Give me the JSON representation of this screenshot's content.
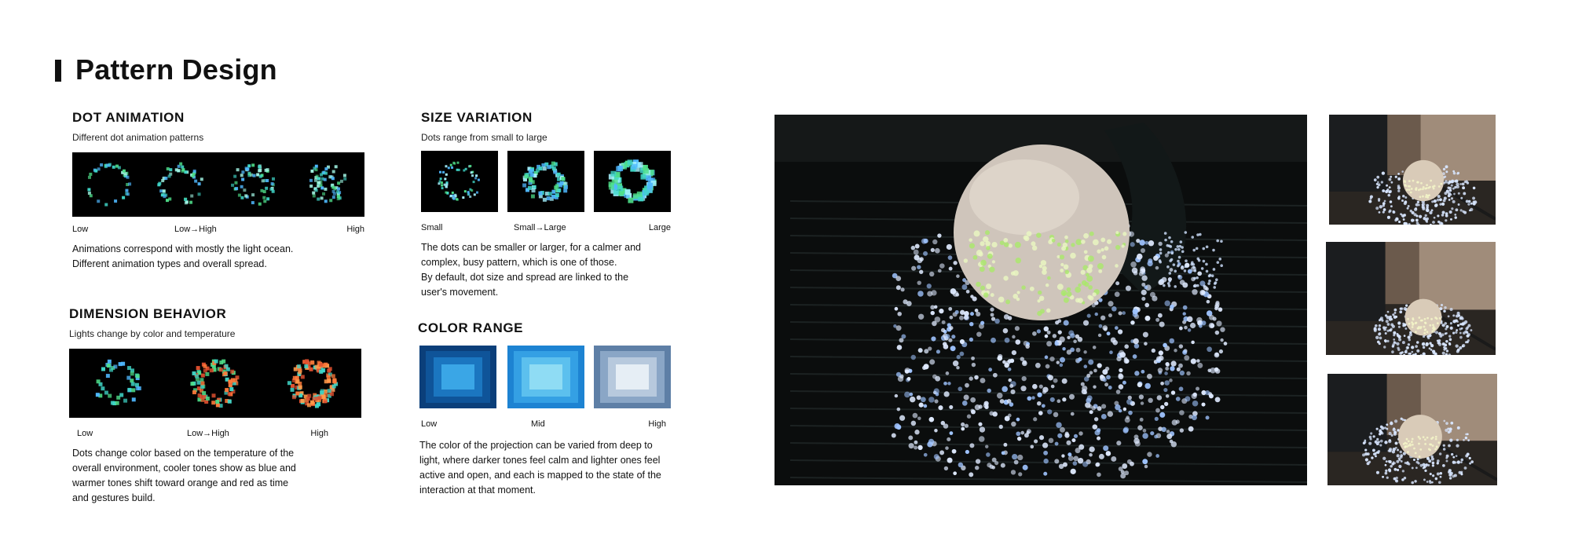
{
  "page": {
    "title": "Pattern Design"
  },
  "sections": {
    "dot_animation": {
      "heading": "DOT ANIMATION",
      "subheading": "Different dot animation patterns",
      "scale": {
        "left": "Low",
        "middle": "Low→High",
        "right": "High"
      },
      "description": [
        "Animations correspond with mostly the light ocean.",
        "Different animation types and overall spread."
      ]
    },
    "size_variation": {
      "heading": "SIZE VARIATION",
      "subheading": "Dots range from small to large",
      "scale": {
        "left": "Small",
        "middle": "Small→Large",
        "right": "Large"
      },
      "description": [
        "The dots can be smaller or larger, for a calmer and",
        "complex, busy pattern, which is one of those.",
        "By default, dot size and spread are linked to the",
        "user's movement."
      ]
    },
    "dimension_behavior": {
      "heading": "DIMENSION BEHAVIOR",
      "subheading": "Lights change by color and temperature",
      "scale": {
        "left": "Low",
        "middle": "Low→High",
        "right": "High"
      },
      "description": [
        "Dots change color based on the temperature of the",
        "overall environment, cooler tones show as blue and",
        "warmer tones shift toward orange and red as time",
        "and gestures build."
      ]
    },
    "color_range": {
      "heading": "COLOR RANGE",
      "scale": {
        "left": "Low",
        "middle": "Mid",
        "right": "High"
      },
      "description": [
        "The color of the projection can be varied from deep to",
        "light, where darker tones feel calm and lighter ones feel",
        "active and open, and each is mapped to the state of the",
        "interaction at that moment."
      ]
    }
  },
  "colors": {
    "ink": "#111111",
    "dot_teal": "#3fd6c8",
    "dot_green": "#4fe08a",
    "dot_blue": "#4fb8ff",
    "dot_orange": "#ff7a3a",
    "dot_red": "#e0502f"
  }
}
